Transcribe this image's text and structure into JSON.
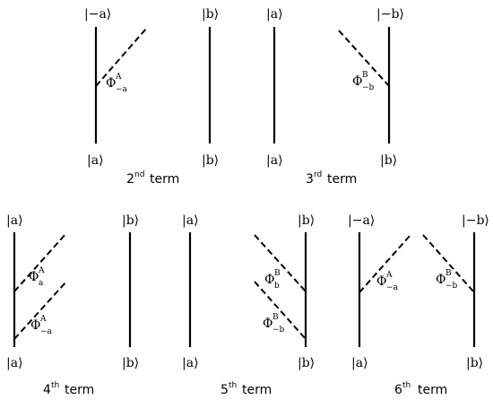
{
  "kets": {
    "a": "|a⟩",
    "b": "|b⟩",
    "minus_a": "|−a⟩",
    "minus_b": "|−b⟩"
  },
  "vertices": {
    "phi": "Φ",
    "sup_A": "A",
    "sup_B": "B",
    "sub_a": "a",
    "sub_b": "b",
    "sub_minus_a": "−a",
    "sub_minus_b": "−b"
  },
  "terms": [
    {
      "num": "2",
      "suffix": "nd",
      "word": "term"
    },
    {
      "num": "3",
      "suffix": "rd",
      "word": "term"
    },
    {
      "num": "4",
      "suffix": "th",
      "word": "term"
    },
    {
      "num": "5",
      "suffix": "th",
      "word": "term"
    },
    {
      "num": "6",
      "suffix": "th",
      "word": "term"
    }
  ]
}
